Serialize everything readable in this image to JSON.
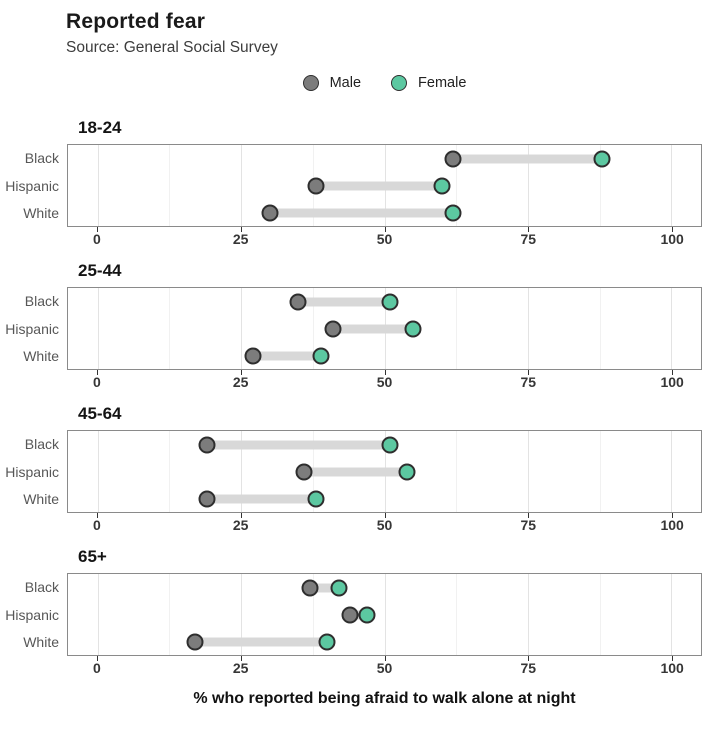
{
  "chart_data": {
    "type": "dumbbell",
    "title": "Reported fear",
    "subtitle": "Source: General Social Survey",
    "xlabel": "% who reported being afraid to walk alone at night",
    "xlim": [
      0,
      100
    ],
    "xticks": [
      0,
      25,
      50,
      75,
      100
    ],
    "minor_ticks": [
      12.5,
      37.5,
      62.5,
      87.5
    ],
    "grid": true,
    "legend_position": "top-center",
    "categories": [
      "Black",
      "Hispanic",
      "White"
    ],
    "series": [
      {
        "name": "Male",
        "fill": "#7c7c7c"
      },
      {
        "name": "Female",
        "fill": "#5cc8a1"
      }
    ],
    "connector_color": "#d8d8d8",
    "facets": [
      {
        "age_group": "18-24",
        "rows": [
          {
            "category": "Black",
            "male": 62,
            "female": 88
          },
          {
            "category": "Hispanic",
            "male": 38,
            "female": 60
          },
          {
            "category": "White",
            "male": 30,
            "female": 62
          }
        ]
      },
      {
        "age_group": "25-44",
        "rows": [
          {
            "category": "Black",
            "male": 35,
            "female": 51
          },
          {
            "category": "Hispanic",
            "male": 41,
            "female": 55
          },
          {
            "category": "White",
            "male": 27,
            "female": 39
          }
        ]
      },
      {
        "age_group": "45-64",
        "rows": [
          {
            "category": "Black",
            "male": 19,
            "female": 51
          },
          {
            "category": "Hispanic",
            "male": 36,
            "female": 54
          },
          {
            "category": "White",
            "male": 19,
            "female": 38
          }
        ]
      },
      {
        "age_group": "65+",
        "rows": [
          {
            "category": "Black",
            "male": 37,
            "female": 42
          },
          {
            "category": "Hispanic",
            "male": 44,
            "female": 47
          },
          {
            "category": "White",
            "male": 17,
            "female": 40
          }
        ]
      }
    ]
  }
}
